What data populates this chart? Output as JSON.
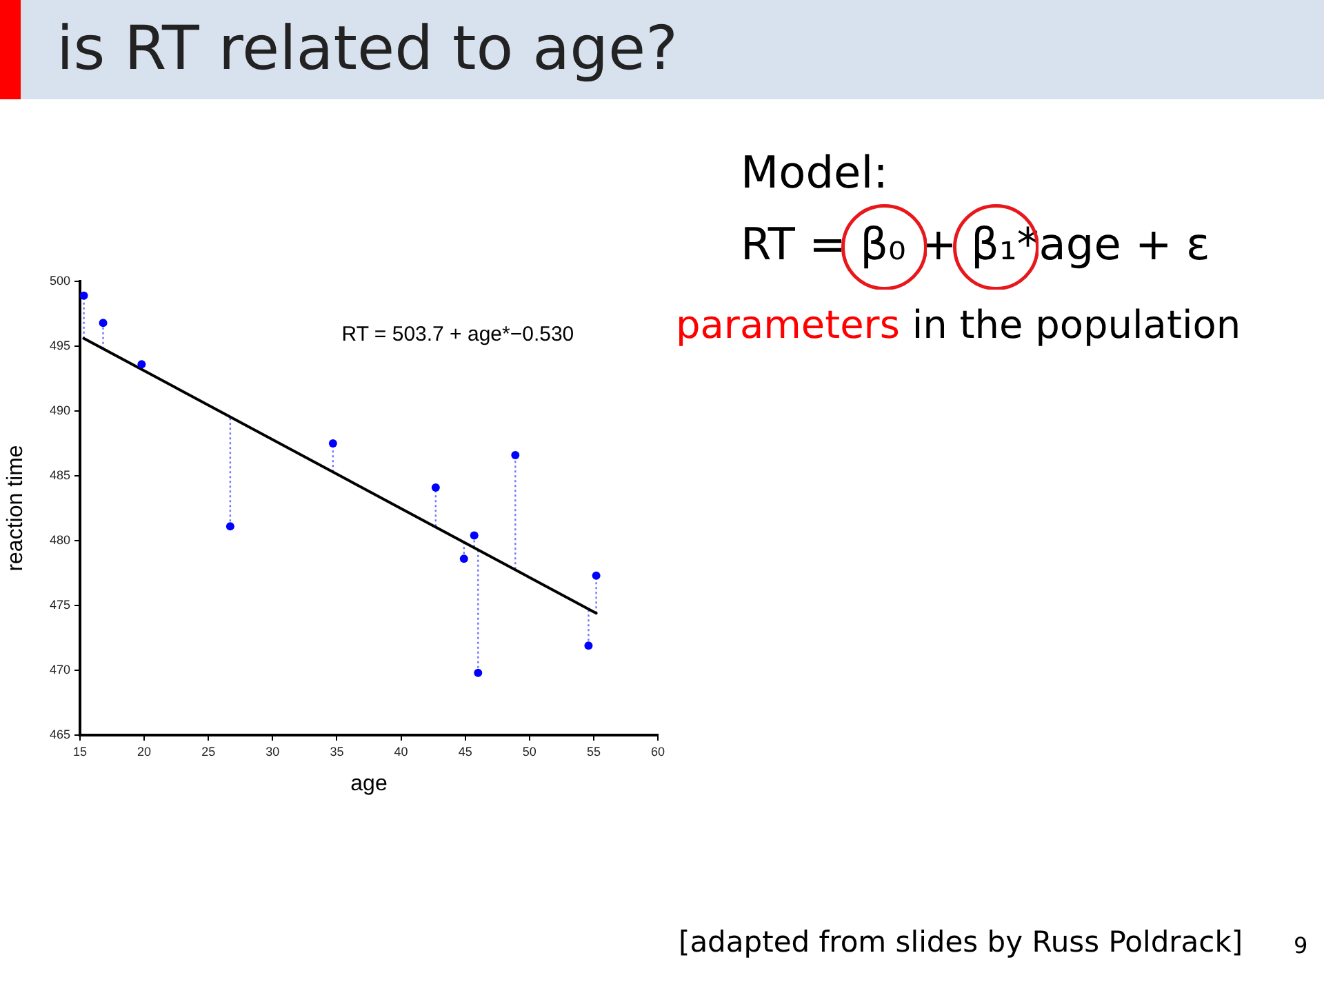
{
  "chart_data": {
    "type": "scatter",
    "title": "is RT related to age?",
    "xlabel": "age",
    "ylabel": "reaction time",
    "xlim": [
      15,
      60
    ],
    "xticks": [
      15,
      20,
      25,
      30,
      35,
      40,
      45,
      50,
      55,
      60
    ],
    "ylim": [
      465,
      500
    ],
    "yticks": [
      465,
      470,
      475,
      480,
      485,
      490,
      495,
      500
    ],
    "grid": false,
    "legend": false,
    "series": [
      {
        "type": "scatter",
        "color": "#0000ff",
        "marker": "circle",
        "x": [
          15.3,
          16.8,
          19.8,
          26.7,
          34.7,
          42.7,
          44.9,
          45.7,
          46.0,
          48.9,
          54.6,
          55.2
        ],
        "values": [
          498.9,
          496.8,
          493.6,
          481.1,
          487.5,
          484.1,
          478.6,
          480.4,
          469.8,
          486.6,
          471.9,
          477.3
        ],
        "errors": [
          [
            495.6,
            498.9
          ],
          [
            494.8,
            496.8
          ],
          [
            493.2,
            493.6
          ],
          [
            481.1,
            489.5
          ],
          [
            485.3,
            487.5
          ],
          [
            481.1,
            484.1
          ],
          [
            478.6,
            479.9
          ],
          [
            479.5,
            480.4
          ],
          [
            469.8,
            479.3
          ],
          [
            477.8,
            486.6
          ],
          [
            471.9,
            474.8
          ],
          [
            474.4,
            477.3
          ]
        ]
      },
      {
        "type": "line",
        "color": "#000000",
        "marker": "none",
        "x": [
          15.3,
          55.2
        ],
        "values": [
          495.6,
          474.4
        ]
      }
    ],
    "annotations": [
      "RT = 503.7 + age*−0.530",
      "Model:",
      "RT = β₀ + β₁*age + ε",
      "parameters in the population",
      "[adapted from slides by Russ Poldrack]",
      "9"
    ]
  }
}
